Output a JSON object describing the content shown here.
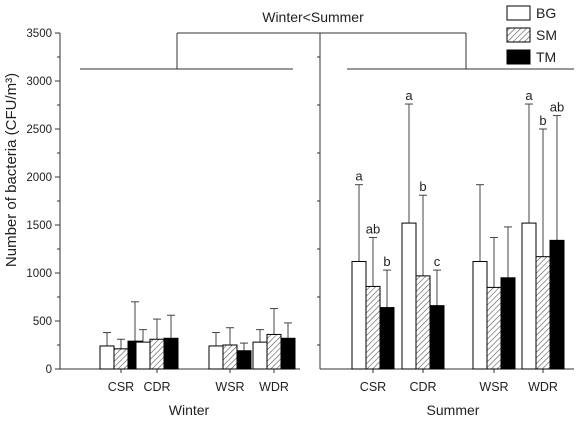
{
  "chart_data": {
    "type": "bar",
    "ylabel": "Number of bacteria (CFU/m³)",
    "ylim": [
      0,
      3500
    ],
    "yticks": [
      0,
      500,
      1000,
      1500,
      2000,
      2500,
      3000,
      3500
    ],
    "legend": {
      "placement": "top-right",
      "entries": [
        "BG",
        "SM",
        "TM"
      ]
    },
    "series_styles": [
      {
        "name": "BG",
        "fill": "#ffffff",
        "pattern": "none"
      },
      {
        "name": "SM",
        "fill": "#ffffff",
        "pattern": "diagonal-hatch"
      },
      {
        "name": "TM",
        "fill": "#000000",
        "pattern": "none"
      }
    ],
    "annotation": "Winter<Summer",
    "panels": [
      {
        "label": "Winter",
        "categories": [
          "CSR",
          "CDR",
          "WSR",
          "WDR"
        ],
        "series": [
          {
            "name": "BG",
            "values": [
              240,
              280,
              240,
              280
            ],
            "errors": [
              140,
              130,
              140,
              130
            ]
          },
          {
            "name": "SM",
            "values": [
              210,
              310,
              250,
              360
            ],
            "errors": [
              100,
              210,
              180,
              270
            ]
          },
          {
            "name": "TM",
            "values": [
              290,
              320,
              190,
              320
            ],
            "errors": [
              410,
              240,
              80,
              160
            ]
          }
        ],
        "letters": []
      },
      {
        "label": "Summer",
        "categories": [
          "CSR",
          "CDR",
          "WSR",
          "WDR"
        ],
        "series": [
          {
            "name": "BG",
            "values": [
              1120,
              1520,
              1120,
              1520
            ],
            "errors": [
              800,
              1240,
              800,
              1240
            ]
          },
          {
            "name": "SM",
            "values": [
              860,
              970,
              850,
              1170
            ],
            "errors": [
              510,
              840,
              520,
              1330
            ]
          },
          {
            "name": "TM",
            "values": [
              640,
              660,
              950,
              1340
            ],
            "errors": [
              390,
              370,
              530,
              1300
            ]
          }
        ],
        "letters": [
          [
            "a",
            "a",
            "",
            "a"
          ],
          [
            "ab",
            "b",
            "",
            "b"
          ],
          [
            "b",
            "c",
            "",
            "ab"
          ]
        ]
      }
    ]
  }
}
